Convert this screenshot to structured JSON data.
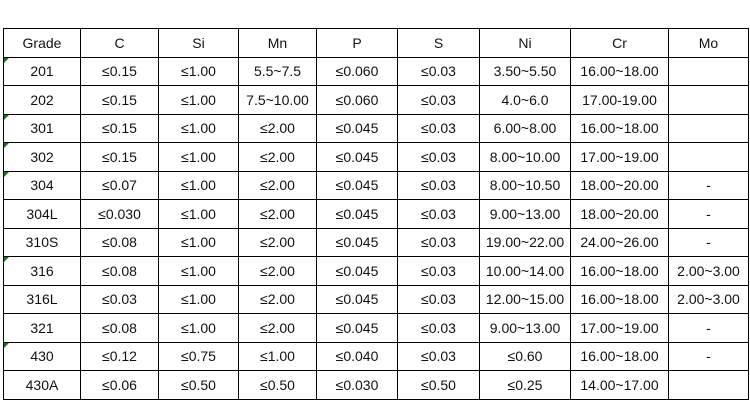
{
  "table": {
    "header": [
      "Grade",
      "C",
      "Si",
      "Mn",
      "P",
      "S",
      "Ni",
      "Cr",
      "Mo"
    ],
    "rows": [
      [
        "201",
        "≤0.15",
        "≤1.00",
        "5.5~7.5",
        "≤0.060",
        "≤0.03",
        "3.50~5.50",
        "16.00~18.00",
        null
      ],
      [
        "202",
        "≤0.15",
        "≤1.00",
        "7.5~10.00",
        "≤0.060",
        "≤0.03",
        "4.0~6.0",
        "17.00-19.00",
        null
      ],
      [
        "301",
        "≤0.15",
        "≤1.00",
        "≤2.00",
        "≤0.045",
        "≤0.03",
        "6.00~8.00",
        "16.00~18.00",
        null
      ],
      [
        "302",
        "≤0.15",
        "≤1.00",
        "≤2.00",
        "≤0.045",
        "≤0.03",
        "8.00~10.00",
        "17.00~19.00",
        null
      ],
      [
        "304",
        "≤0.07",
        "≤1.00",
        "≤2.00",
        "≤0.045",
        "≤0.03",
        "8.00~10.50",
        "18.00~20.00",
        "-"
      ],
      [
        "304L",
        "≤0.030",
        "≤1.00",
        "≤2.00",
        "≤0.045",
        "≤0.03",
        "9.00~13.00",
        "18.00~20.00",
        "-"
      ],
      [
        "310S",
        "≤0.08",
        "≤1.00",
        "≤2.00",
        "≤0.045",
        "≤0.03",
        "19.00~22.00",
        "24.00~26.00",
        "-"
      ],
      [
        "316",
        "≤0.08",
        "≤1.00",
        "≤2.00",
        "≤0.045",
        "≤0.03",
        "10.00~14.00",
        "16.00~18.00",
        "2.00~3.00"
      ],
      [
        "316L",
        "≤0.03",
        "≤1.00",
        "≤2.00",
        "≤0.045",
        "≤0.03",
        "12.00~15.00",
        "16.00~18.00",
        "2.00~3.00"
      ],
      [
        "321",
        "≤0.08",
        "≤1.00",
        "≤2.00",
        "≤0.045",
        "≤0.03",
        "9.00~13.00",
        "17.00~19.00",
        "-"
      ],
      [
        "430",
        "≤0.12",
        "≤0.75",
        "≤1.00",
        "≤0.040",
        "≤0.03",
        "≤0.60",
        "16.00~18.00",
        "-"
      ],
      [
        "430A",
        "≤0.06",
        "≤0.50",
        "≤0.50",
        "≤0.030",
        "≤0.50",
        "≤0.25",
        "14.00~17.00",
        null
      ]
    ]
  }
}
